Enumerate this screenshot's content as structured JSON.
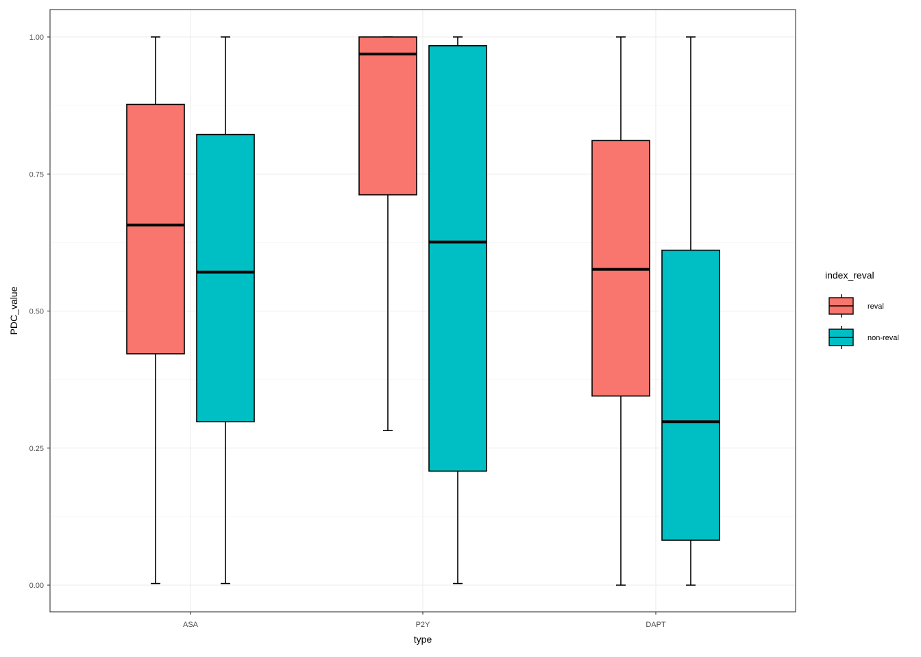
{
  "chart_data": {
    "type": "boxplot",
    "xlabel": "type",
    "ylabel": "PDC_value",
    "categories": [
      "ASA",
      "P2Y",
      "DAPT"
    ],
    "y_ticks": [
      "0.00",
      "0.25",
      "0.50",
      "0.75",
      "1.00"
    ],
    "y_tick_values": [
      0,
      0.25,
      0.5,
      0.75,
      1.0
    ],
    "ylim": [
      -0.05,
      1.05
    ],
    "grid": true,
    "legend": {
      "title": "index_reval",
      "position": "right",
      "entries": [
        "reval",
        "non-reval"
      ]
    },
    "series": [
      {
        "name": "reval",
        "color": "#F8766D",
        "boxes": [
          {
            "category": "ASA",
            "whisker_low": 0.003,
            "q1": 0.422,
            "median": 0.657,
            "q3": 0.877,
            "whisker_high": 1.0
          },
          {
            "category": "P2Y",
            "whisker_low": 0.282,
            "q1": 0.712,
            "median": 0.969,
            "q3": 1.0,
            "whisker_high": 1.0
          },
          {
            "category": "DAPT",
            "whisker_low": 0.0,
            "q1": 0.345,
            "median": 0.576,
            "q3": 0.811,
            "whisker_high": 1.0
          }
        ]
      },
      {
        "name": "non-reval",
        "color": "#00BFC4",
        "boxes": [
          {
            "category": "ASA",
            "whisker_low": 0.003,
            "q1": 0.298,
            "median": 0.571,
            "q3": 0.822,
            "whisker_high": 1.0
          },
          {
            "category": "P2Y",
            "whisker_low": 0.003,
            "q1": 0.208,
            "median": 0.626,
            "q3": 0.984,
            "whisker_high": 1.0
          },
          {
            "category": "DAPT",
            "whisker_low": 0.0,
            "q1": 0.082,
            "median": 0.298,
            "q3": 0.611,
            "whisker_high": 1.0
          }
        ]
      }
    ]
  }
}
